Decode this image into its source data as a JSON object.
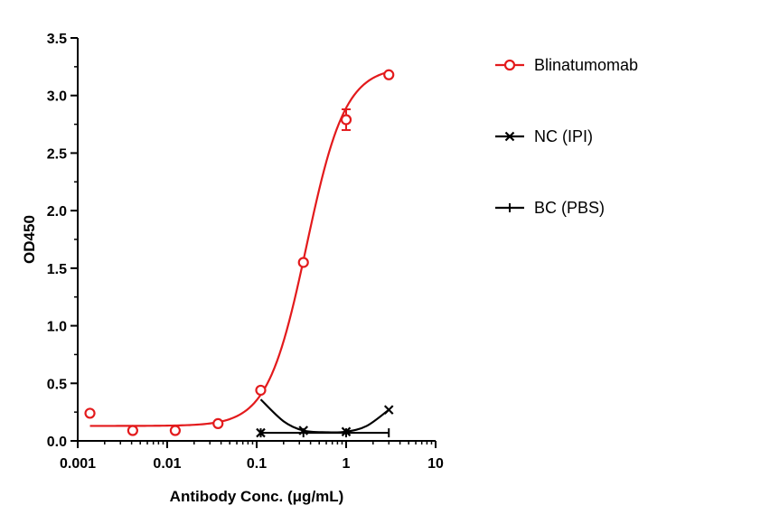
{
  "chart_data": {
    "type": "scatter",
    "x_scale": "log",
    "xlabel": "Antibody Conc. (μg/mL)",
    "ylabel": "OD450",
    "xlim": [
      0.001,
      10
    ],
    "ylim": [
      0,
      3.5
    ],
    "x_ticks": [
      0.001,
      0.01,
      0.1,
      1,
      10
    ],
    "x_tick_labels": [
      "0.001",
      "0.01",
      "0.1",
      "1",
      "10"
    ],
    "y_ticks": [
      0,
      0.5,
      1.0,
      1.5,
      2.0,
      2.5,
      3.0,
      3.5
    ],
    "y_tick_labels": [
      "0.0",
      "0.5",
      "1.0",
      "1.5",
      "2.0",
      "2.5",
      "3.0",
      "3.5"
    ],
    "grid": false,
    "legend_position": "right",
    "series": [
      {
        "name": "Blinatumomab",
        "color": "#e31a1c",
        "marker": "open-circle",
        "x": [
          0.00137,
          0.00412,
          0.0123,
          0.037,
          0.111,
          0.333,
          1.0,
          3.0
        ],
        "y": [
          0.24,
          0.09,
          0.09,
          0.15,
          0.44,
          1.55,
          2.79,
          3.18
        ],
        "error": [
          0,
          0,
          0,
          0,
          0,
          0,
          0.09,
          0
        ],
        "fit": {
          "bottom": 0.13,
          "top": 3.25,
          "ec50": 0.36,
          "hill": 2.0
        }
      },
      {
        "name": "NC (IPI)",
        "color": "#000000",
        "marker": "x",
        "x": [
          0.111,
          0.333,
          1.0,
          3.0
        ],
        "y": [
          0.07,
          0.09,
          0.08,
          0.27
        ],
        "curve": [
          [
            0.111,
            0.36
          ],
          [
            0.2,
            0.17
          ],
          [
            0.333,
            0.09
          ],
          [
            0.6,
            0.075
          ],
          [
            1.0,
            0.08
          ],
          [
            1.7,
            0.13
          ],
          [
            3.0,
            0.27
          ]
        ]
      },
      {
        "name": "BC (PBS)",
        "color": "#000000",
        "marker": "bar",
        "x": [
          0.111,
          0.333,
          1.0,
          3.0
        ],
        "y": [
          0.07,
          0.07,
          0.07,
          0.07
        ],
        "curve": [
          [
            0.111,
            0.07
          ],
          [
            3.0,
            0.07
          ]
        ]
      }
    ]
  }
}
